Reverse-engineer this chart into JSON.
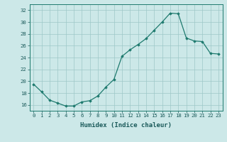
{
  "x": [
    0,
    1,
    2,
    3,
    4,
    5,
    6,
    7,
    8,
    9,
    10,
    11,
    12,
    13,
    14,
    15,
    16,
    17,
    18,
    19,
    20,
    21,
    22,
    23
  ],
  "y": [
    19.5,
    18.2,
    16.8,
    16.3,
    15.8,
    15.8,
    16.5,
    16.7,
    17.5,
    19.0,
    20.3,
    24.2,
    25.3,
    26.2,
    27.2,
    28.6,
    30.0,
    31.5,
    31.4,
    27.3,
    26.8,
    26.7,
    24.7,
    24.6
  ],
  "xlabel": "Humidex (Indice chaleur)",
  "xlim": [
    -0.5,
    23.5
  ],
  "ylim": [
    15.0,
    33.0
  ],
  "yticks": [
    16,
    18,
    20,
    22,
    24,
    26,
    28,
    30,
    32
  ],
  "xticks": [
    0,
    1,
    2,
    3,
    4,
    5,
    6,
    7,
    8,
    9,
    10,
    11,
    12,
    13,
    14,
    15,
    16,
    17,
    18,
    19,
    20,
    21,
    22,
    23
  ],
  "line_color": "#1e7a6e",
  "marker": "D",
  "marker_size": 1.8,
  "bg_color": "#cce8e8",
  "grid_color": "#9ec8c8",
  "axes_color": "#1e7a6e",
  "label_color": "#1a5a5a",
  "tick_fontsize": 5.2,
  "xlabel_fontsize": 6.5
}
